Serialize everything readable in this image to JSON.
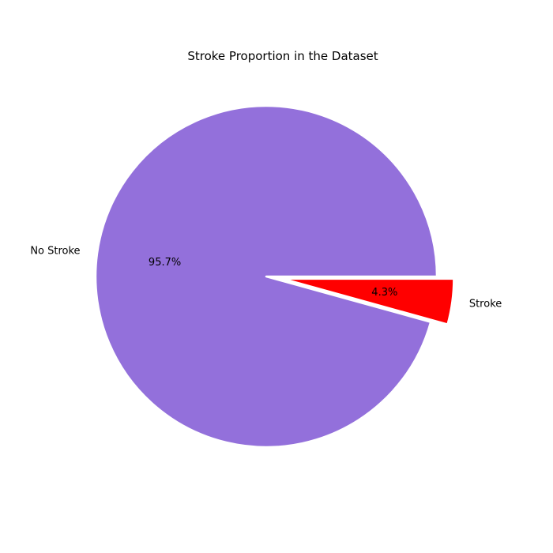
{
  "chart_data": {
    "type": "pie",
    "title": "Stroke Proportion in the Dataset",
    "categories": [
      "No Stroke",
      "Stroke"
    ],
    "values": [
      95.7,
      4.3
    ],
    "value_labels": [
      "95.7%",
      "4.3%"
    ],
    "colors": [
      "#9370db",
      "#ff0000"
    ],
    "explode": [
      0,
      0.1
    ],
    "start_angle_degrees": 0,
    "direction": "counterclockwise",
    "wedge_edge_color": "#ffffff"
  }
}
